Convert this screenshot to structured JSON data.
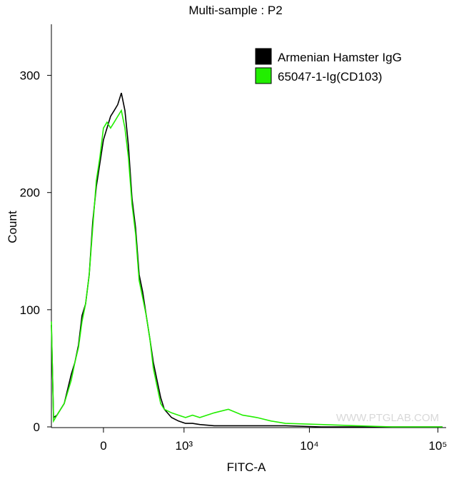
{
  "chart_data": {
    "type": "line",
    "title": "Multi-sample : P2",
    "x_label": "FITC-A",
    "y_label": "Count",
    "xscale": "biexponential",
    "x": [
      -537,
      -509,
      -466,
      -381,
      -304,
      -267,
      -231,
      -197,
      -163,
      -129,
      -97,
      -64,
      -32,
      0,
      32,
      64,
      97,
      129,
      163,
      197,
      231,
      267,
      304,
      342,
      381,
      422,
      466,
      509,
      556,
      607,
      660,
      773,
      895,
      1030,
      1183,
      1360,
      1784,
      2317,
      3005,
      3420,
      3890,
      5035,
      6500,
      12350,
      23400,
      44350,
      108500
    ],
    "series": [
      {
        "name": "Armenian Hamster IgG",
        "color": "#000000",
        "values": [
          87,
          8,
          10,
          20,
          45,
          55,
          70,
          95,
          105,
          130,
          175,
          205,
          225,
          245,
          255,
          265,
          270,
          275,
          285,
          270,
          240,
          195,
          170,
          130,
          115,
          95,
          75,
          55,
          40,
          25,
          15,
          8,
          5,
          3,
          3,
          2,
          1,
          1,
          1,
          1,
          1,
          1,
          1,
          0,
          0,
          0,
          0
        ]
      },
      {
        "name": "65047-1-Ig(CD103)",
        "color": "#22ee00",
        "values": [
          90,
          5,
          10,
          20,
          40,
          55,
          68,
          90,
          105,
          130,
          170,
          210,
          230,
          255,
          260,
          255,
          260,
          265,
          270,
          255,
          230,
          190,
          165,
          125,
          110,
          95,
          75,
          50,
          35,
          20,
          15,
          12,
          10,
          8,
          10,
          8,
          12,
          15,
          10,
          9,
          8,
          5,
          3,
          2,
          1,
          0,
          0
        ]
      }
    ],
    "xlim": [
      -537,
      116000
    ],
    "ylim": [
      0,
      343
    ],
    "xticks": [
      0,
      {
        "value": 1000,
        "label": "10³"
      },
      {
        "value": 10000,
        "label": "10⁴"
      },
      {
        "value": 100000,
        "label": "10⁵"
      }
    ],
    "yticks": [
      0,
      100,
      200,
      300
    ],
    "legend": "top-right",
    "watermark": "WWW.PTGLAB.COM"
  }
}
